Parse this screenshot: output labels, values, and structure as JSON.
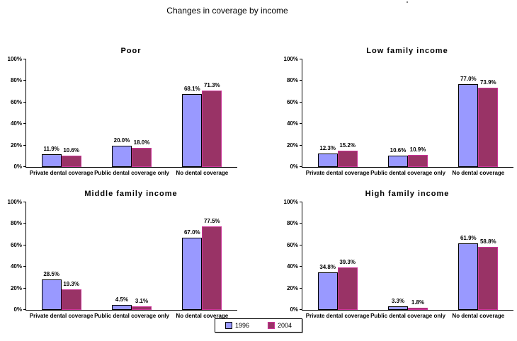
{
  "page_title": "Changes in coverage by income",
  "legend": {
    "items": [
      {
        "label": "1996",
        "color": "#9999FF",
        "border": "#000000"
      },
      {
        "label": "2004",
        "color": "#993366",
        "border": "#CC3399"
      }
    ]
  },
  "chart_data": [
    {
      "type": "bar",
      "title": "Poor",
      "categories": [
        "Private dental coverage",
        "Public dental coverage only",
        "No dental coverage"
      ],
      "series": [
        {
          "name": "1996",
          "values": [
            11.9,
            20.0,
            68.1
          ]
        },
        {
          "name": "2004",
          "values": [
            10.6,
            18.0,
            71.3
          ]
        }
      ],
      "xlabel": "",
      "ylabel": "",
      "ylim": [
        0,
        100
      ],
      "yticks": [
        "0%",
        "20%",
        "40%",
        "60%",
        "80%",
        "100%"
      ],
      "grid": false,
      "value_labels": true
    },
    {
      "type": "bar",
      "title": "Low family income",
      "categories": [
        "Private dental coverage",
        "Public dental coverage only",
        "No dental coverage"
      ],
      "series": [
        {
          "name": "1996",
          "values": [
            12.3,
            10.6,
            77.0
          ]
        },
        {
          "name": "2004",
          "values": [
            15.2,
            10.9,
            73.9
          ]
        }
      ],
      "xlabel": "",
      "ylabel": "",
      "ylim": [
        0,
        100
      ],
      "yticks": [
        "0%",
        "20%",
        "40%",
        "60%",
        "80%",
        "100%"
      ],
      "grid": false,
      "value_labels": true
    },
    {
      "type": "bar",
      "title": "Middle family income",
      "categories": [
        "Private dental coverage",
        "Public dental coverage only",
        "No dental coverage"
      ],
      "series": [
        {
          "name": "1996",
          "values": [
            28.5,
            4.5,
            67.0
          ]
        },
        {
          "name": "2004",
          "values": [
            19.3,
            3.1,
            77.5
          ]
        }
      ],
      "xlabel": "",
      "ylabel": "",
      "ylim": [
        0,
        100
      ],
      "yticks": [
        "0%",
        "20%",
        "40%",
        "60%",
        "80%",
        "100%"
      ],
      "grid": false,
      "value_labels": true
    },
    {
      "type": "bar",
      "title": "High family income",
      "categories": [
        "Private dental coverage",
        "Public dental coverage only",
        "No dental coverage"
      ],
      "series": [
        {
          "name": "1996",
          "values": [
            34.8,
            3.3,
            61.9
          ]
        },
        {
          "name": "2004",
          "values": [
            39.3,
            1.8,
            58.8
          ]
        }
      ],
      "xlabel": "",
      "ylabel": "",
      "ylim": [
        0,
        100
      ],
      "yticks": [
        "0%",
        "20%",
        "40%",
        "60%",
        "80%",
        "100%"
      ],
      "grid": false,
      "value_labels": true
    }
  ]
}
